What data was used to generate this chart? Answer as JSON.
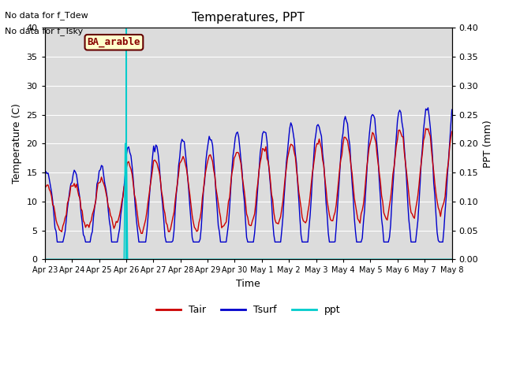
{
  "title": "Temperatures, PPT",
  "xlabel": "Time",
  "ylabel_left": "Temperature (C)",
  "ylabel_right": "PPT (mm)",
  "annotations": [
    "No data for f_Tdew",
    "No data for f_Tsky"
  ],
  "location_label": "BA_arable",
  "ylim_left": [
    0,
    40
  ],
  "ylim_right": [
    0.0,
    0.4
  ],
  "yticks_left": [
    0,
    5,
    10,
    15,
    20,
    25,
    30,
    35,
    40
  ],
  "yticks_right": [
    0.0,
    0.05,
    0.1,
    0.15,
    0.2,
    0.25,
    0.3,
    0.35,
    0.4
  ],
  "xtick_labels": [
    "Apr 23",
    "Apr 24",
    "Apr 25",
    "Apr 26",
    "Apr 27",
    "Apr 28",
    "Apr 29",
    "Apr 30",
    "May 1",
    "May 2",
    "May 3",
    "May 4",
    "May 5",
    "May 6",
    "May 7",
    "May 8"
  ],
  "colors": {
    "Tair": "#cc0000",
    "Tsurf": "#0000cc",
    "ppt": "#00cccc",
    "bg_plot": "#dcdcdc",
    "bg_figure": "#ffffff",
    "vline": "#00cccc",
    "location_box_face": "#ffffcc",
    "location_box_edge": "#660000",
    "location_text": "#880000"
  },
  "vline_x": 3.0,
  "n_days": 15,
  "hours_per_day": 24
}
